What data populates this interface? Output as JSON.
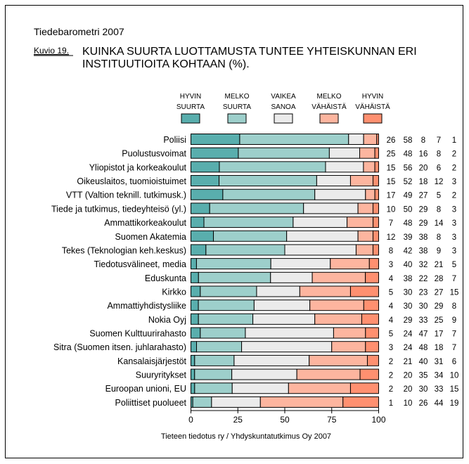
{
  "header": {
    "publication": "Tiedebarometri 2007",
    "figure_label": "Kuvio 19.",
    "title_line1": "KUINKA SUURTA LUOTTAMUSTA TUNTEE YHTEISKUNNAN ERI",
    "title_line2": "INSTITUUTIOITA KOHTAAN (%)."
  },
  "chart_data": {
    "type": "bar",
    "orientation": "horizontal",
    "stacked": true,
    "title": "KUINKA SUURTA LUOTTAMUSTA TUNTEE YHTEISKUNNAN ERI INSTITUUTIOITA KOHTAAN (%).",
    "xlim": [
      0,
      100
    ],
    "xticks": [
      0,
      25,
      50,
      75,
      100
    ],
    "legend_placement": "top",
    "categories": [
      "Poliisi",
      "Puolustusvoimat",
      "Yliopistot ja korkeakoulut",
      "Oikeuslaitos, tuomioistuimet",
      "VTT (Valtion teknill. tutkimusk.)",
      "Tiede ja tutkimus, tiedeyhteisö (yl.)",
      "Ammattikorkeakoulut",
      "Suomen Akatemia",
      "Tekes (Teknologian keh.keskus)",
      "Tiedotusvälineet, media",
      "Eduskunta",
      "Kirkko",
      "Ammattiyhdistysliike",
      "Nokia Oyj",
      "Suomen Kulttuurirahasto",
      "Sitra (Suomen itsen. juhlarahasto)",
      "Kansalaisjärjestöt",
      "Suuryritykset",
      "Euroopan unioni, EU",
      "Poliittiset puolueet"
    ],
    "series": [
      {
        "name": [
          "HYVIN",
          "SUURTA"
        ],
        "color": "#59AEAD",
        "values": [
          26,
          25,
          15,
          15,
          17,
          10,
          7,
          12,
          8,
          3,
          4,
          5,
          4,
          4,
          5,
          3,
          2,
          2,
          2,
          1
        ]
      },
      {
        "name": [
          "MELKO",
          "SUURTA"
        ],
        "color": "#9DCFCB",
        "values": [
          58,
          48,
          56,
          52,
          49,
          50,
          48,
          39,
          42,
          40,
          38,
          30,
          30,
          29,
          24,
          24,
          21,
          20,
          20,
          10
        ]
      },
      {
        "name": [
          "VAIKEA",
          "SANOA"
        ],
        "color": "#EBEBEB",
        "values": [
          8,
          16,
          20,
          18,
          27,
          29,
          29,
          38,
          38,
          32,
          22,
          23,
          30,
          33,
          47,
          48,
          40,
          35,
          30,
          26
        ]
      },
      {
        "name": [
          "MELKO",
          "VÄHÄISTÄ"
        ],
        "color": "#FDB59F",
        "values": [
          7,
          8,
          6,
          12,
          5,
          8,
          14,
          8,
          9,
          21,
          28,
          27,
          29,
          25,
          17,
          18,
          31,
          34,
          33,
          44
        ]
      },
      {
        "name": [
          "HYVIN",
          "VÄHÄISTÄ"
        ],
        "color": "#FF9070",
        "values": [
          1,
          2,
          2,
          3,
          2,
          3,
          3,
          3,
          3,
          5,
          7,
          15,
          8,
          9,
          7,
          7,
          6,
          10,
          15,
          19
        ]
      }
    ],
    "source": "Tieteen tiedotus ry / Yhdyskuntatutkimus Oy 2007"
  }
}
